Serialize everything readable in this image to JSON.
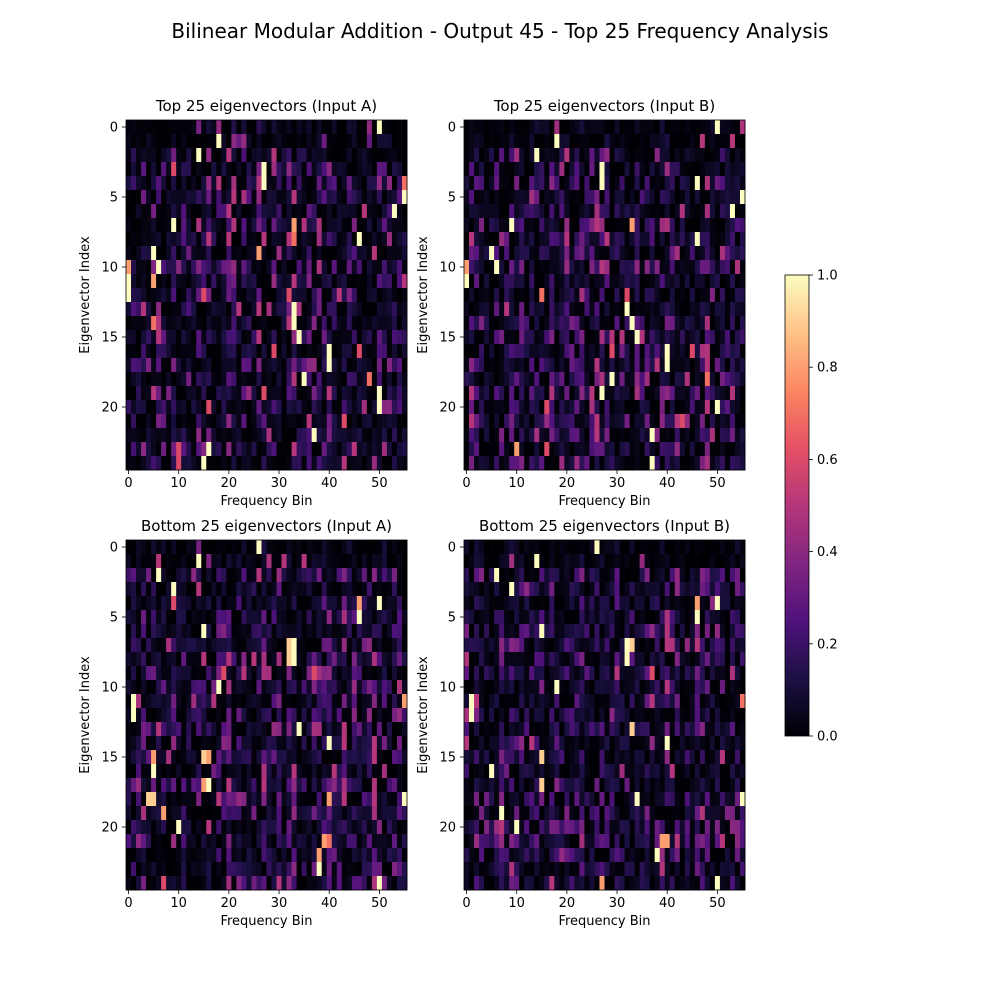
{
  "figure": {
    "title": "Bilinear Modular Addition - Output 45 - Top 25 Frequency Analysis"
  },
  "colormap": {
    "name": "magma",
    "stops": [
      "#000004",
      "#1c1044",
      "#4f127b",
      "#812581",
      "#b5367a",
      "#e55064",
      "#fb8761",
      "#fec287",
      "#fcfdbf"
    ],
    "min": 0.0,
    "max": 1.0,
    "ticks": [
      "0.0",
      "0.2",
      "0.4",
      "0.6",
      "0.8",
      "1.0"
    ]
  },
  "chart_data": [
    {
      "type": "heatmap",
      "title": "Top 25 eigenvectors (Input A)",
      "xlabel": "Frequency Bin",
      "ylabel": "Eigenvector Index",
      "x_ticks": [
        "0",
        "10",
        "20",
        "30",
        "40",
        "50"
      ],
      "y_ticks": [
        "0",
        "5",
        "10",
        "15",
        "20"
      ],
      "n_cols": 56,
      "n_rows": 25,
      "value_range": [
        0,
        1
      ],
      "hotspots": [
        {
          "row": 0,
          "col": 50,
          "value": 1.0
        },
        {
          "row": 0,
          "col": 14,
          "value": 0.35
        },
        {
          "row": 1,
          "col": 18,
          "value": 1.0
        },
        {
          "row": 2,
          "col": 14,
          "value": 1.0
        },
        {
          "row": 3,
          "col": 9,
          "value": 0.6
        },
        {
          "row": 3,
          "col": 27,
          "value": 1.0
        },
        {
          "row": 4,
          "col": 27,
          "value": 1.0
        },
        {
          "row": 4,
          "col": 55,
          "value": 0.7
        },
        {
          "row": 5,
          "col": 55,
          "value": 1.0
        },
        {
          "row": 6,
          "col": 53,
          "value": 1.0
        },
        {
          "row": 7,
          "col": 9,
          "value": 1.0
        },
        {
          "row": 7,
          "col": 33,
          "value": 0.8
        },
        {
          "row": 8,
          "col": 46,
          "value": 1.0
        },
        {
          "row": 8,
          "col": 33,
          "value": 0.7
        },
        {
          "row": 9,
          "col": 5,
          "value": 1.0
        },
        {
          "row": 9,
          "col": 26,
          "value": 0.8
        },
        {
          "row": 10,
          "col": 0,
          "value": 0.8
        },
        {
          "row": 10,
          "col": 6,
          "value": 1.0
        },
        {
          "row": 11,
          "col": 0,
          "value": 1.0
        },
        {
          "row": 11,
          "col": 5,
          "value": 0.8
        },
        {
          "row": 12,
          "col": 0,
          "value": 1.0
        },
        {
          "row": 12,
          "col": 15,
          "value": 0.6
        },
        {
          "row": 12,
          "col": 32,
          "value": 0.6
        },
        {
          "row": 13,
          "col": 33,
          "value": 1.0
        },
        {
          "row": 14,
          "col": 33,
          "value": 1.0
        },
        {
          "row": 14,
          "col": 5,
          "value": 0.7
        },
        {
          "row": 15,
          "col": 34,
          "value": 1.0
        },
        {
          "row": 16,
          "col": 29,
          "value": 0.6
        },
        {
          "row": 16,
          "col": 40,
          "value": 1.0
        },
        {
          "row": 16,
          "col": 46,
          "value": 0.6
        },
        {
          "row": 17,
          "col": 40,
          "value": 1.0
        },
        {
          "row": 18,
          "col": 35,
          "value": 1.0
        },
        {
          "row": 18,
          "col": 48,
          "value": 0.7
        },
        {
          "row": 19,
          "col": 27,
          "value": 0.6
        },
        {
          "row": 19,
          "col": 50,
          "value": 1.0
        },
        {
          "row": 20,
          "col": 50,
          "value": 1.0
        },
        {
          "row": 20,
          "col": 16,
          "value": 0.6
        },
        {
          "row": 21,
          "col": 43,
          "value": 0.6
        },
        {
          "row": 22,
          "col": 37,
          "value": 1.0
        },
        {
          "row": 23,
          "col": 16,
          "value": 1.0
        },
        {
          "row": 23,
          "col": 10,
          "value": 0.6
        },
        {
          "row": 24,
          "col": 15,
          "value": 1.0
        },
        {
          "row": 24,
          "col": 10,
          "value": 0.6
        }
      ]
    },
    {
      "type": "heatmap",
      "title": "Top 25 eigenvectors (Input B)",
      "xlabel": "Frequency Bin",
      "ylabel": "Eigenvector Index",
      "x_ticks": [
        "0",
        "10",
        "20",
        "30",
        "40",
        "50"
      ],
      "y_ticks": [
        "0",
        "5",
        "10",
        "15",
        "20"
      ],
      "n_cols": 56,
      "n_rows": 25,
      "value_range": [
        0,
        1
      ],
      "hotspots": [
        {
          "row": 0,
          "col": 50,
          "value": 1.0
        },
        {
          "row": 1,
          "col": 18,
          "value": 1.0
        },
        {
          "row": 2,
          "col": 14,
          "value": 1.0
        },
        {
          "row": 3,
          "col": 27,
          "value": 1.0
        },
        {
          "row": 4,
          "col": 27,
          "value": 1.0
        },
        {
          "row": 4,
          "col": 46,
          "value": 1.0
        },
        {
          "row": 5,
          "col": 55,
          "value": 1.0
        },
        {
          "row": 6,
          "col": 53,
          "value": 1.0
        },
        {
          "row": 7,
          "col": 9,
          "value": 1.0
        },
        {
          "row": 7,
          "col": 33,
          "value": 0.8
        },
        {
          "row": 8,
          "col": 46,
          "value": 1.0
        },
        {
          "row": 9,
          "col": 5,
          "value": 1.0
        },
        {
          "row": 10,
          "col": 0,
          "value": 0.8
        },
        {
          "row": 10,
          "col": 6,
          "value": 1.0
        },
        {
          "row": 11,
          "col": 0,
          "value": 1.0
        },
        {
          "row": 12,
          "col": 15,
          "value": 0.7
        },
        {
          "row": 12,
          "col": 32,
          "value": 0.6
        },
        {
          "row": 13,
          "col": 32,
          "value": 1.0
        },
        {
          "row": 14,
          "col": 33,
          "value": 1.0
        },
        {
          "row": 15,
          "col": 34,
          "value": 1.0
        },
        {
          "row": 16,
          "col": 29,
          "value": 0.6
        },
        {
          "row": 16,
          "col": 40,
          "value": 1.0
        },
        {
          "row": 16,
          "col": 45,
          "value": 0.6
        },
        {
          "row": 17,
          "col": 40,
          "value": 1.0
        },
        {
          "row": 18,
          "col": 29,
          "value": 1.0
        },
        {
          "row": 18,
          "col": 48,
          "value": 0.7
        },
        {
          "row": 19,
          "col": 27,
          "value": 1.0
        },
        {
          "row": 20,
          "col": 50,
          "value": 1.0
        },
        {
          "row": 20,
          "col": 16,
          "value": 0.6
        },
        {
          "row": 21,
          "col": 43,
          "value": 0.6
        },
        {
          "row": 22,
          "col": 37,
          "value": 1.0
        },
        {
          "row": 23,
          "col": 10,
          "value": 0.8
        },
        {
          "row": 23,
          "col": 16,
          "value": 0.6
        },
        {
          "row": 24,
          "col": 37,
          "value": 1.0
        }
      ]
    },
    {
      "type": "heatmap",
      "title": "Bottom 25 eigenvectors (Input A)",
      "xlabel": "Frequency Bin",
      "ylabel": "Eigenvector Index",
      "x_ticks": [
        "0",
        "10",
        "20",
        "30",
        "40",
        "50"
      ],
      "y_ticks": [
        "0",
        "5",
        "10",
        "15",
        "20"
      ],
      "n_cols": 56,
      "n_rows": 25,
      "value_range": [
        0,
        1
      ],
      "hotspots": [
        {
          "row": 0,
          "col": 26,
          "value": 1.0
        },
        {
          "row": 0,
          "col": 14,
          "value": 0.35
        },
        {
          "row": 1,
          "col": 14,
          "value": 1.0
        },
        {
          "row": 2,
          "col": 6,
          "value": 1.0
        },
        {
          "row": 3,
          "col": 9,
          "value": 1.0
        },
        {
          "row": 4,
          "col": 9,
          "value": 0.6
        },
        {
          "row": 4,
          "col": 50,
          "value": 1.0
        },
        {
          "row": 4,
          "col": 46,
          "value": 0.8
        },
        {
          "row": 5,
          "col": 46,
          "value": 1.0
        },
        {
          "row": 6,
          "col": 15,
          "value": 1.0
        },
        {
          "row": 7,
          "col": 33,
          "value": 1.0
        },
        {
          "row": 7,
          "col": 32,
          "value": 0.9
        },
        {
          "row": 8,
          "col": 33,
          "value": 1.0
        },
        {
          "row": 8,
          "col": 32,
          "value": 0.9
        },
        {
          "row": 9,
          "col": 19,
          "value": 0.6
        },
        {
          "row": 9,
          "col": 37,
          "value": 0.6
        },
        {
          "row": 10,
          "col": 18,
          "value": 1.0
        },
        {
          "row": 11,
          "col": 1,
          "value": 1.0
        },
        {
          "row": 11,
          "col": 55,
          "value": 0.8
        },
        {
          "row": 12,
          "col": 1,
          "value": 1.0
        },
        {
          "row": 13,
          "col": 34,
          "value": 1.0
        },
        {
          "row": 14,
          "col": 40,
          "value": 1.0
        },
        {
          "row": 15,
          "col": 15,
          "value": 0.9
        },
        {
          "row": 15,
          "col": 16,
          "value": 0.8
        },
        {
          "row": 15,
          "col": 5,
          "value": 0.8
        },
        {
          "row": 16,
          "col": 5,
          "value": 1.0
        },
        {
          "row": 17,
          "col": 16,
          "value": 1.0
        },
        {
          "row": 17,
          "col": 15,
          "value": 0.8
        },
        {
          "row": 18,
          "col": 4,
          "value": 0.9
        },
        {
          "row": 18,
          "col": 5,
          "value": 0.9
        },
        {
          "row": 18,
          "col": 40,
          "value": 0.8
        },
        {
          "row": 18,
          "col": 55,
          "value": 1.0
        },
        {
          "row": 19,
          "col": 7,
          "value": 0.8
        },
        {
          "row": 20,
          "col": 10,
          "value": 1.0
        },
        {
          "row": 21,
          "col": 39,
          "value": 0.8
        },
        {
          "row": 21,
          "col": 40,
          "value": 0.7
        },
        {
          "row": 22,
          "col": 38,
          "value": 0.8
        },
        {
          "row": 23,
          "col": 38,
          "value": 1.0
        },
        {
          "row": 24,
          "col": 50,
          "value": 1.0
        },
        {
          "row": 24,
          "col": 7,
          "value": 0.6
        }
      ]
    },
    {
      "type": "heatmap",
      "title": "Bottom 25 eigenvectors (Input B)",
      "xlabel": "Frequency Bin",
      "ylabel": "Eigenvector Index",
      "x_ticks": [
        "0",
        "10",
        "20",
        "30",
        "40",
        "50"
      ],
      "y_ticks": [
        "0",
        "5",
        "10",
        "15",
        "20"
      ],
      "n_cols": 56,
      "n_rows": 25,
      "value_range": [
        0,
        1
      ],
      "hotspots": [
        {
          "row": 0,
          "col": 26,
          "value": 1.0
        },
        {
          "row": 1,
          "col": 14,
          "value": 1.0
        },
        {
          "row": 2,
          "col": 6,
          "value": 1.0
        },
        {
          "row": 3,
          "col": 9,
          "value": 1.0
        },
        {
          "row": 4,
          "col": 50,
          "value": 1.0
        },
        {
          "row": 4,
          "col": 46,
          "value": 0.8
        },
        {
          "row": 5,
          "col": 46,
          "value": 1.0
        },
        {
          "row": 6,
          "col": 15,
          "value": 1.0
        },
        {
          "row": 7,
          "col": 32,
          "value": 1.0
        },
        {
          "row": 7,
          "col": 33,
          "value": 0.9
        },
        {
          "row": 8,
          "col": 32,
          "value": 1.0
        },
        {
          "row": 9,
          "col": 37,
          "value": 0.6
        },
        {
          "row": 10,
          "col": 18,
          "value": 1.0
        },
        {
          "row": 11,
          "col": 1,
          "value": 1.0
        },
        {
          "row": 11,
          "col": 55,
          "value": 0.7
        },
        {
          "row": 12,
          "col": 1,
          "value": 1.0
        },
        {
          "row": 13,
          "col": 33,
          "value": 0.9
        },
        {
          "row": 14,
          "col": 40,
          "value": 1.0
        },
        {
          "row": 15,
          "col": 15,
          "value": 0.9
        },
        {
          "row": 16,
          "col": 5,
          "value": 1.0
        },
        {
          "row": 17,
          "col": 15,
          "value": 0.9
        },
        {
          "row": 18,
          "col": 34,
          "value": 1.0
        },
        {
          "row": 18,
          "col": 55,
          "value": 1.0
        },
        {
          "row": 19,
          "col": 7,
          "value": 1.0
        },
        {
          "row": 20,
          "col": 10,
          "value": 1.0
        },
        {
          "row": 21,
          "col": 39,
          "value": 0.8
        },
        {
          "row": 21,
          "col": 40,
          "value": 0.8
        },
        {
          "row": 22,
          "col": 38,
          "value": 1.0
        },
        {
          "row": 24,
          "col": 27,
          "value": 0.8
        },
        {
          "row": 24,
          "col": 50,
          "value": 1.0
        }
      ]
    }
  ]
}
